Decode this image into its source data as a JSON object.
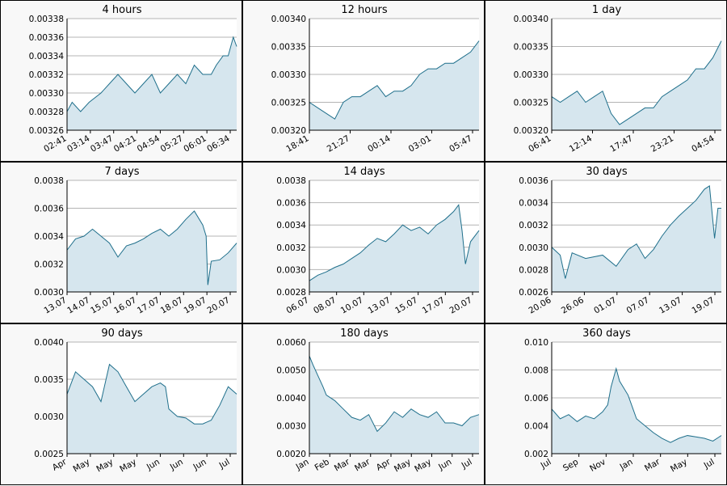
{
  "colors": {
    "line": "#1f6f8b",
    "fill": "#d6e6ee",
    "grid": "#b4b4b4",
    "axis": "#000000"
  },
  "chart_data": [
    {
      "type": "area",
      "title": "4 hours",
      "ylim": [
        0.00326,
        0.00338
      ],
      "yticks": [
        "0.00326",
        "0.00328",
        "0.00330",
        "0.00332",
        "0.00334",
        "0.00336",
        "0.00338"
      ],
      "xticks": [
        "02:41",
        "03:14",
        "03:47",
        "04:21",
        "04:54",
        "05:27",
        "06:01",
        "06:34"
      ],
      "x": [
        0,
        0.03,
        0.08,
        0.13,
        0.2,
        0.25,
        0.3,
        0.35,
        0.4,
        0.45,
        0.5,
        0.55,
        0.6,
        0.65,
        0.7,
        0.75,
        0.8,
        0.85,
        0.88,
        0.92,
        0.95,
        0.98,
        1.0
      ],
      "y": [
        0.00328,
        0.00329,
        0.00328,
        0.00329,
        0.0033,
        0.00331,
        0.00332,
        0.00331,
        0.0033,
        0.00331,
        0.00332,
        0.0033,
        0.00331,
        0.00332,
        0.00331,
        0.00333,
        0.00332,
        0.00332,
        0.00333,
        0.00334,
        0.00334,
        0.00336,
        0.00335
      ]
    },
    {
      "type": "area",
      "title": "12 hours",
      "ylim": [
        0.0032,
        0.0034
      ],
      "yticks": [
        "0.00320",
        "0.00325",
        "0.00330",
        "0.00335",
        "0.00340"
      ],
      "xticks": [
        "18:41",
        "21:27",
        "00:14",
        "03:01",
        "05:47"
      ],
      "x": [
        0,
        0.05,
        0.1,
        0.15,
        0.2,
        0.25,
        0.3,
        0.35,
        0.4,
        0.45,
        0.5,
        0.55,
        0.6,
        0.65,
        0.7,
        0.75,
        0.8,
        0.85,
        0.9,
        0.95,
        1.0
      ],
      "y": [
        0.00325,
        0.00324,
        0.00323,
        0.00322,
        0.00325,
        0.00326,
        0.00326,
        0.00327,
        0.00328,
        0.00326,
        0.00327,
        0.00327,
        0.00328,
        0.0033,
        0.00331,
        0.00331,
        0.00332,
        0.00332,
        0.00333,
        0.00334,
        0.00336
      ]
    },
    {
      "type": "area",
      "title": "1 day",
      "ylim": [
        0.0032,
        0.0034
      ],
      "yticks": [
        "0.00320",
        "0.00325",
        "0.00330",
        "0.00335",
        "0.00340"
      ],
      "xticks": [
        "06:41",
        "12:14",
        "17:47",
        "23:21",
        "04:54"
      ],
      "x": [
        0,
        0.05,
        0.1,
        0.15,
        0.2,
        0.25,
        0.3,
        0.35,
        0.4,
        0.45,
        0.5,
        0.55,
        0.6,
        0.65,
        0.7,
        0.75,
        0.8,
        0.85,
        0.9,
        0.95,
        1.0
      ],
      "y": [
        0.00326,
        0.00325,
        0.00326,
        0.00327,
        0.00325,
        0.00326,
        0.00327,
        0.00323,
        0.00321,
        0.00322,
        0.00323,
        0.00324,
        0.00324,
        0.00326,
        0.00327,
        0.00328,
        0.00329,
        0.00331,
        0.00331,
        0.00333,
        0.00336
      ]
    },
    {
      "type": "area",
      "title": "7 days",
      "ylim": [
        0.003,
        0.0038
      ],
      "yticks": [
        "0.0030",
        "0.0032",
        "0.0034",
        "0.0036",
        "0.0038"
      ],
      "xticks": [
        "13.07",
        "14.07",
        "15.07",
        "16.07",
        "17.07",
        "18.07",
        "19.07",
        "20.07"
      ],
      "x": [
        0,
        0.05,
        0.1,
        0.15,
        0.2,
        0.25,
        0.3,
        0.35,
        0.4,
        0.45,
        0.5,
        0.55,
        0.6,
        0.65,
        0.7,
        0.75,
        0.8,
        0.82,
        0.83,
        0.85,
        0.9,
        0.95,
        1.0
      ],
      "y": [
        0.0033,
        0.00338,
        0.0034,
        0.00345,
        0.0034,
        0.00335,
        0.00325,
        0.00333,
        0.00335,
        0.00338,
        0.00342,
        0.00345,
        0.0034,
        0.00345,
        0.00352,
        0.00358,
        0.00348,
        0.0034,
        0.00305,
        0.00322,
        0.00323,
        0.00328,
        0.00335
      ]
    },
    {
      "type": "area",
      "title": "14 days",
      "ylim": [
        0.0028,
        0.0038
      ],
      "yticks": [
        "0.0028",
        "0.0030",
        "0.0032",
        "0.0034",
        "0.0036",
        "0.0038"
      ],
      "xticks": [
        "06.07",
        "08.07",
        "10.07",
        "13.07",
        "15.07",
        "17.07",
        "20.07"
      ],
      "x": [
        0,
        0.05,
        0.1,
        0.15,
        0.2,
        0.25,
        0.3,
        0.35,
        0.4,
        0.45,
        0.5,
        0.55,
        0.6,
        0.65,
        0.7,
        0.75,
        0.8,
        0.85,
        0.88,
        0.9,
        0.92,
        0.95,
        1.0
      ],
      "y": [
        0.0029,
        0.00295,
        0.00298,
        0.00302,
        0.00305,
        0.0031,
        0.00315,
        0.00322,
        0.00328,
        0.00325,
        0.00332,
        0.0034,
        0.00335,
        0.00338,
        0.00332,
        0.0034,
        0.00345,
        0.00352,
        0.00358,
        0.00335,
        0.00305,
        0.00325,
        0.00335
      ]
    },
    {
      "type": "area",
      "title": "30 days",
      "ylim": [
        0.0026,
        0.0036
      ],
      "yticks": [
        "0.0026",
        "0.0028",
        "0.0030",
        "0.0032",
        "0.0034",
        "0.0036"
      ],
      "xticks": [
        "20.06",
        "26.06",
        "01.07",
        "07.07",
        "13.07",
        "19.07"
      ],
      "x": [
        0,
        0.05,
        0.08,
        0.12,
        0.2,
        0.3,
        0.38,
        0.45,
        0.5,
        0.55,
        0.6,
        0.65,
        0.7,
        0.75,
        0.8,
        0.85,
        0.9,
        0.93,
        0.96,
        0.98,
        1.0
      ],
      "y": [
        0.003,
        0.00293,
        0.00272,
        0.00295,
        0.0029,
        0.00293,
        0.00283,
        0.00298,
        0.00303,
        0.0029,
        0.00298,
        0.0031,
        0.0032,
        0.00328,
        0.00335,
        0.00342,
        0.00352,
        0.00355,
        0.00308,
        0.00335,
        0.00335
      ]
    },
    {
      "type": "area",
      "title": "90 days",
      "ylim": [
        0.0025,
        0.004
      ],
      "yticks": [
        "0.0025",
        "0.0030",
        "0.0035",
        "0.0040"
      ],
      "xticks": [
        "Apr",
        "May",
        "May",
        "May",
        "Jun",
        "Jun",
        "Jun",
        "Jul"
      ],
      "x": [
        0,
        0.05,
        0.1,
        0.15,
        0.2,
        0.22,
        0.25,
        0.3,
        0.35,
        0.4,
        0.45,
        0.5,
        0.55,
        0.58,
        0.6,
        0.65,
        0.7,
        0.75,
        0.8,
        0.85,
        0.9,
        0.95,
        1.0
      ],
      "y": [
        0.0033,
        0.0036,
        0.0035,
        0.0034,
        0.0032,
        0.0034,
        0.0037,
        0.0036,
        0.0034,
        0.0032,
        0.0033,
        0.0034,
        0.00345,
        0.0034,
        0.0031,
        0.003,
        0.00298,
        0.0029,
        0.0029,
        0.00295,
        0.00315,
        0.0034,
        0.0033
      ]
    },
    {
      "type": "area",
      "title": "180 days",
      "ylim": [
        0.002,
        0.006
      ],
      "yticks": [
        "0.0020",
        "0.0030",
        "0.0040",
        "0.0050",
        "0.0060"
      ],
      "xticks": [
        "Jan",
        "Feb",
        "Mar",
        "Mar",
        "Apr",
        "May",
        "May",
        "Jun",
        "Jul"
      ],
      "x": [
        0,
        0.02,
        0.05,
        0.08,
        0.1,
        0.15,
        0.2,
        0.25,
        0.3,
        0.35,
        0.4,
        0.45,
        0.5,
        0.55,
        0.6,
        0.65,
        0.7,
        0.75,
        0.8,
        0.85,
        0.9,
        0.95,
        1.0
      ],
      "y": [
        0.0055,
        0.0052,
        0.0048,
        0.0044,
        0.0041,
        0.0039,
        0.0036,
        0.0033,
        0.0032,
        0.0034,
        0.0028,
        0.0031,
        0.0035,
        0.0033,
        0.0036,
        0.0034,
        0.0033,
        0.0035,
        0.0031,
        0.0031,
        0.003,
        0.0033,
        0.0034
      ]
    },
    {
      "type": "area",
      "title": "360 days",
      "ylim": [
        0.002,
        0.01
      ],
      "yticks": [
        "0.002",
        "0.004",
        "0.006",
        "0.008",
        "0.010"
      ],
      "xticks": [
        "Jul",
        "Sep",
        "Nov",
        "Jan",
        "Mar",
        "May",
        "Jul"
      ],
      "x": [
        0,
        0.05,
        0.1,
        0.15,
        0.2,
        0.25,
        0.3,
        0.33,
        0.35,
        0.38,
        0.4,
        0.45,
        0.5,
        0.55,
        0.6,
        0.65,
        0.7,
        0.75,
        0.8,
        0.85,
        0.9,
        0.95,
        1.0
      ],
      "y": [
        0.0052,
        0.0045,
        0.0048,
        0.0043,
        0.0047,
        0.0045,
        0.005,
        0.0055,
        0.0068,
        0.0081,
        0.0072,
        0.0062,
        0.0045,
        0.004,
        0.0035,
        0.0031,
        0.0028,
        0.0031,
        0.0033,
        0.0032,
        0.0031,
        0.0029,
        0.0033
      ]
    }
  ]
}
